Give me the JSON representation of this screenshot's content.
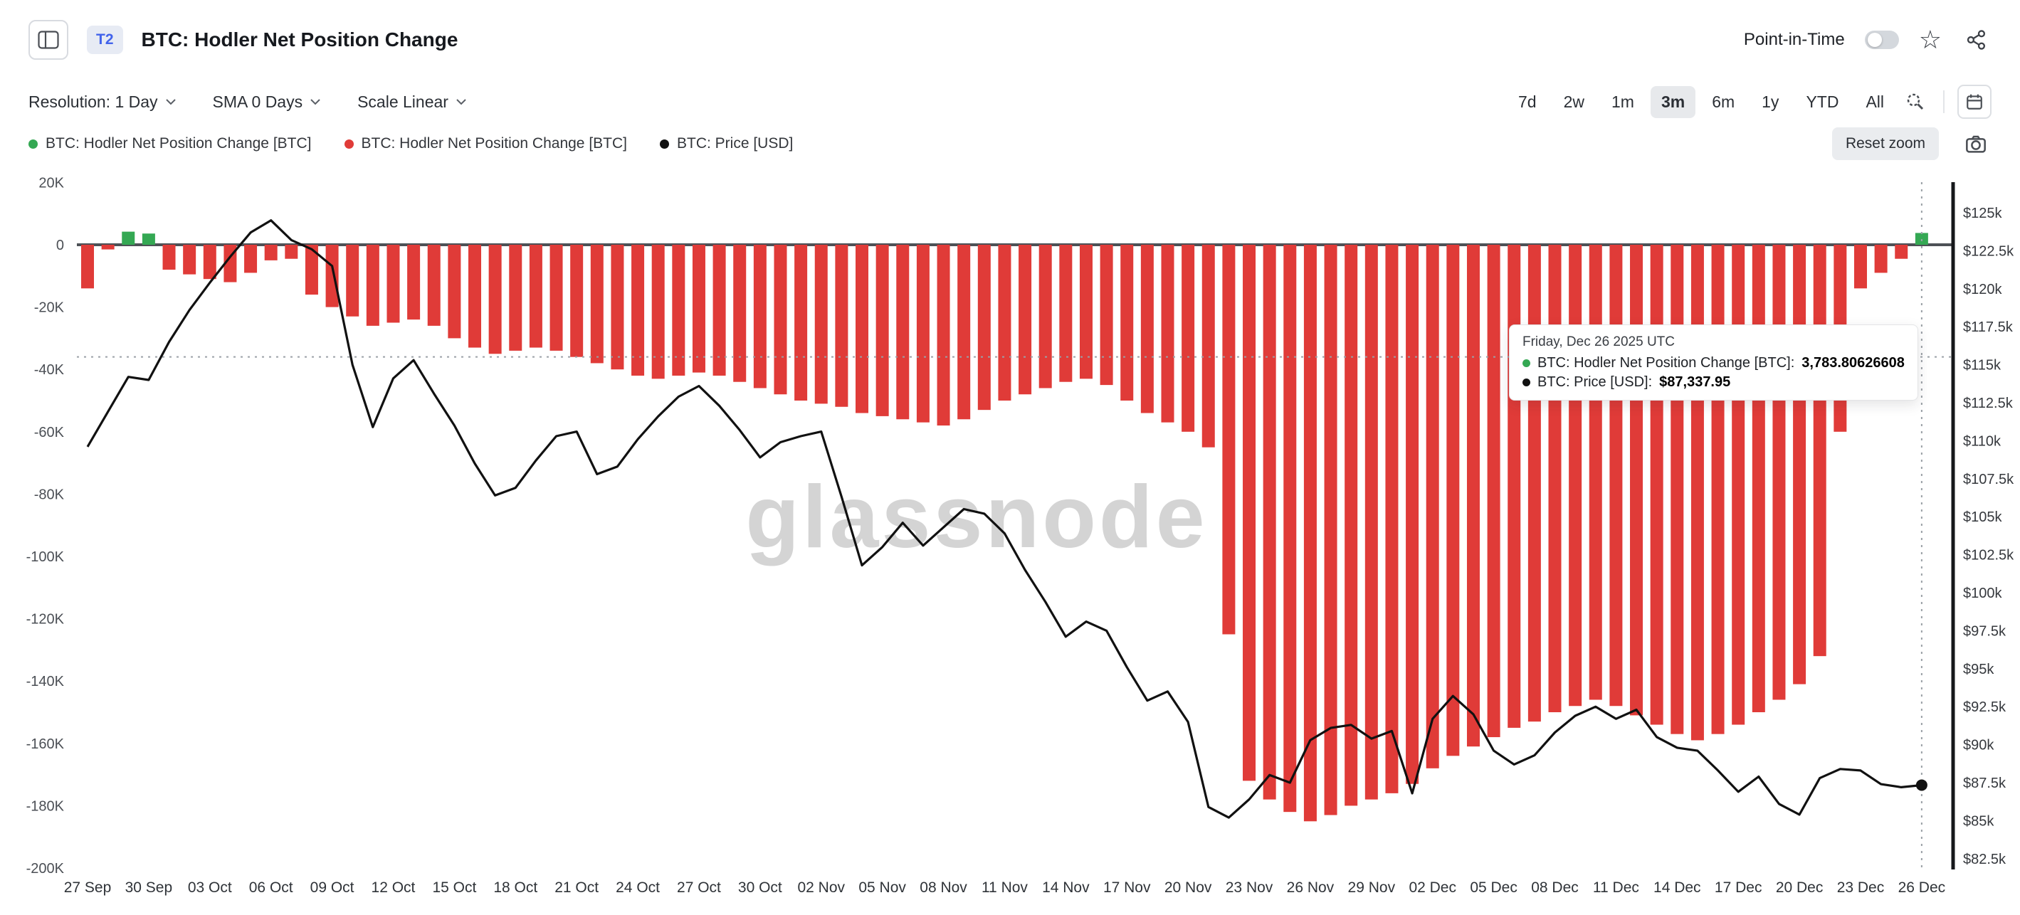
{
  "header": {
    "badge": "T2",
    "title": "BTC: Hodler Net Position Change",
    "point_in_time_label": "Point-in-Time"
  },
  "toolbar": {
    "resolution_text": "Resolution: 1 Day",
    "sma_text": "SMA 0 Days",
    "scale_text": "Scale Linear",
    "ranges": [
      "7d",
      "2w",
      "1m",
      "3m",
      "6m",
      "1y",
      "YTD",
      "All"
    ],
    "selected_range": "3m",
    "reset_zoom_label": "Reset zoom"
  },
  "legend": [
    {
      "label": "BTC: Hodler Net Position Change [BTC]",
      "color": "#34a853"
    },
    {
      "label": "BTC: Hodler Net Position Change [BTC]",
      "color": "#e03b38"
    },
    {
      "label": "BTC: Price [USD]",
      "color": "#111111"
    }
  ],
  "tooltip": {
    "date": "Friday, Dec 26 2025 UTC",
    "rows": [
      {
        "label": "BTC: Hodler Net Position Change [BTC]:",
        "value": "3,783.80626608",
        "color": "#34a853"
      },
      {
        "label": "BTC: Price [USD]:",
        "value": "$87,337.95",
        "color": "#111111"
      }
    ]
  },
  "watermark": "glassnode",
  "icons": {
    "sidebar_toggle": "sidebar-panel",
    "favorite": "star-outline",
    "favorite_glyph": "☆",
    "share": "share-nodes",
    "dropdown": "chevron-down",
    "zoom_selection": "magnifier",
    "calendar": "calendar",
    "screenshot": "camera"
  },
  "chart_data": {
    "type": "bar",
    "title": "BTC: Hodler Net Position Change",
    "x_start_date": "27 Sep",
    "x_end_date": "26 Dec",
    "grid": false,
    "legend_position": "top-left",
    "x_tick_labels": [
      "27 Sep",
      "30 Sep",
      "03 Oct",
      "06 Oct",
      "09 Oct",
      "12 Oct",
      "15 Oct",
      "18 Oct",
      "21 Oct",
      "24 Oct",
      "27 Oct",
      "30 Oct",
      "02 Nov",
      "05 Nov",
      "08 Nov",
      "11 Nov",
      "14 Nov",
      "17 Nov",
      "20 Nov",
      "23 Nov",
      "26 Nov",
      "29 Nov",
      "02 Dec",
      "05 Dec",
      "08 Dec",
      "11 Dec",
      "14 Dec",
      "17 Dec",
      "20 Dec",
      "23 Dec",
      "26 Dec"
    ],
    "left_axis": {
      "ticks": [
        "20K",
        "0",
        "-20K",
        "-40K",
        "-60K",
        "-80K",
        "-100K",
        "-120K",
        "-140K",
        "-160K",
        "-180K",
        "-200K"
      ],
      "range": [
        -200000,
        20000
      ]
    },
    "right_axis": {
      "ticks": [
        "$125k",
        "$122.5k",
        "$120k",
        "$117.5k",
        "$115k",
        "$112.5k",
        "$110k",
        "$107.5k",
        "$105k",
        "$102.5k",
        "$100k",
        "$97.5k",
        "$95k",
        "$92.5k",
        "$90k",
        "$87.5k",
        "$85k",
        "$82.5k"
      ],
      "range": [
        82500,
        125000
      ]
    },
    "series": [
      {
        "name": "BTC: Hodler Net Position Change [BTC]",
        "type": "bar",
        "positive_color": "#34a853",
        "negative_color": "#e03b38",
        "values": [
          -14000,
          -1500,
          4200,
          3600,
          -8000,
          -9500,
          -11000,
          -12000,
          -9000,
          -5000,
          -4500,
          -16000,
          -20000,
          -23000,
          -26000,
          -25000,
          -24000,
          -26000,
          -30000,
          -33000,
          -35000,
          -34000,
          -33000,
          -34000,
          -36000,
          -38000,
          -40000,
          -42000,
          -43000,
          -42000,
          -41000,
          -42000,
          -44000,
          -46000,
          -48000,
          -50000,
          -51000,
          -52000,
          -54000,
          -55000,
          -56000,
          -57000,
          -58000,
          -56000,
          -53000,
          -50000,
          -48000,
          -46000,
          -44000,
          -43000,
          -45000,
          -50000,
          -54000,
          -57000,
          -60000,
          -65000,
          -125000,
          -172000,
          -178000,
          -182000,
          -185000,
          -183000,
          -180000,
          -178000,
          -176000,
          -173000,
          -168000,
          -164000,
          -161000,
          -158000,
          -155000,
          -153000,
          -150000,
          -148000,
          -146000,
          -148000,
          -151000,
          -154000,
          -157000,
          -159000,
          -157000,
          -154000,
          -150000,
          -146000,
          -141000,
          -132000,
          -60000,
          -14000,
          -9000,
          -4500,
          3783.80626608
        ]
      },
      {
        "name": "BTC: Price [USD]",
        "type": "line",
        "color": "#111111",
        "values": [
          109600,
          111900,
          114200,
          114000,
          116500,
          118600,
          120400,
          122100,
          123700,
          124500,
          123200,
          122600,
          121500,
          115000,
          110900,
          114100,
          115300,
          113100,
          111000,
          108500,
          106400,
          106900,
          108700,
          110300,
          110600,
          107800,
          108300,
          110100,
          111600,
          112900,
          113600,
          112300,
          110700,
          108900,
          109900,
          110300,
          110600,
          106300,
          101800,
          103000,
          104600,
          103100,
          104300,
          105500,
          105200,
          103900,
          101500,
          99400,
          97100,
          98100,
          97500,
          95100,
          92900,
          93500,
          91500,
          85900,
          85200,
          86400,
          88000,
          87500,
          90300,
          91100,
          91300,
          90400,
          90900,
          86800,
          91700,
          93200,
          92000,
          89600,
          88700,
          89300,
          90800,
          91900,
          92500,
          91700,
          92300,
          90500,
          89800,
          89600,
          88300,
          86900,
          87900,
          86100,
          85400,
          87800,
          88400,
          88300,
          87400,
          87200,
          87337.95
        ]
      }
    ],
    "crosshair": {
      "x_index": 90,
      "y_left_value": -36000
    },
    "last_point_marker": {
      "series": "BTC: Price [USD]",
      "x_index": 90
    }
  }
}
